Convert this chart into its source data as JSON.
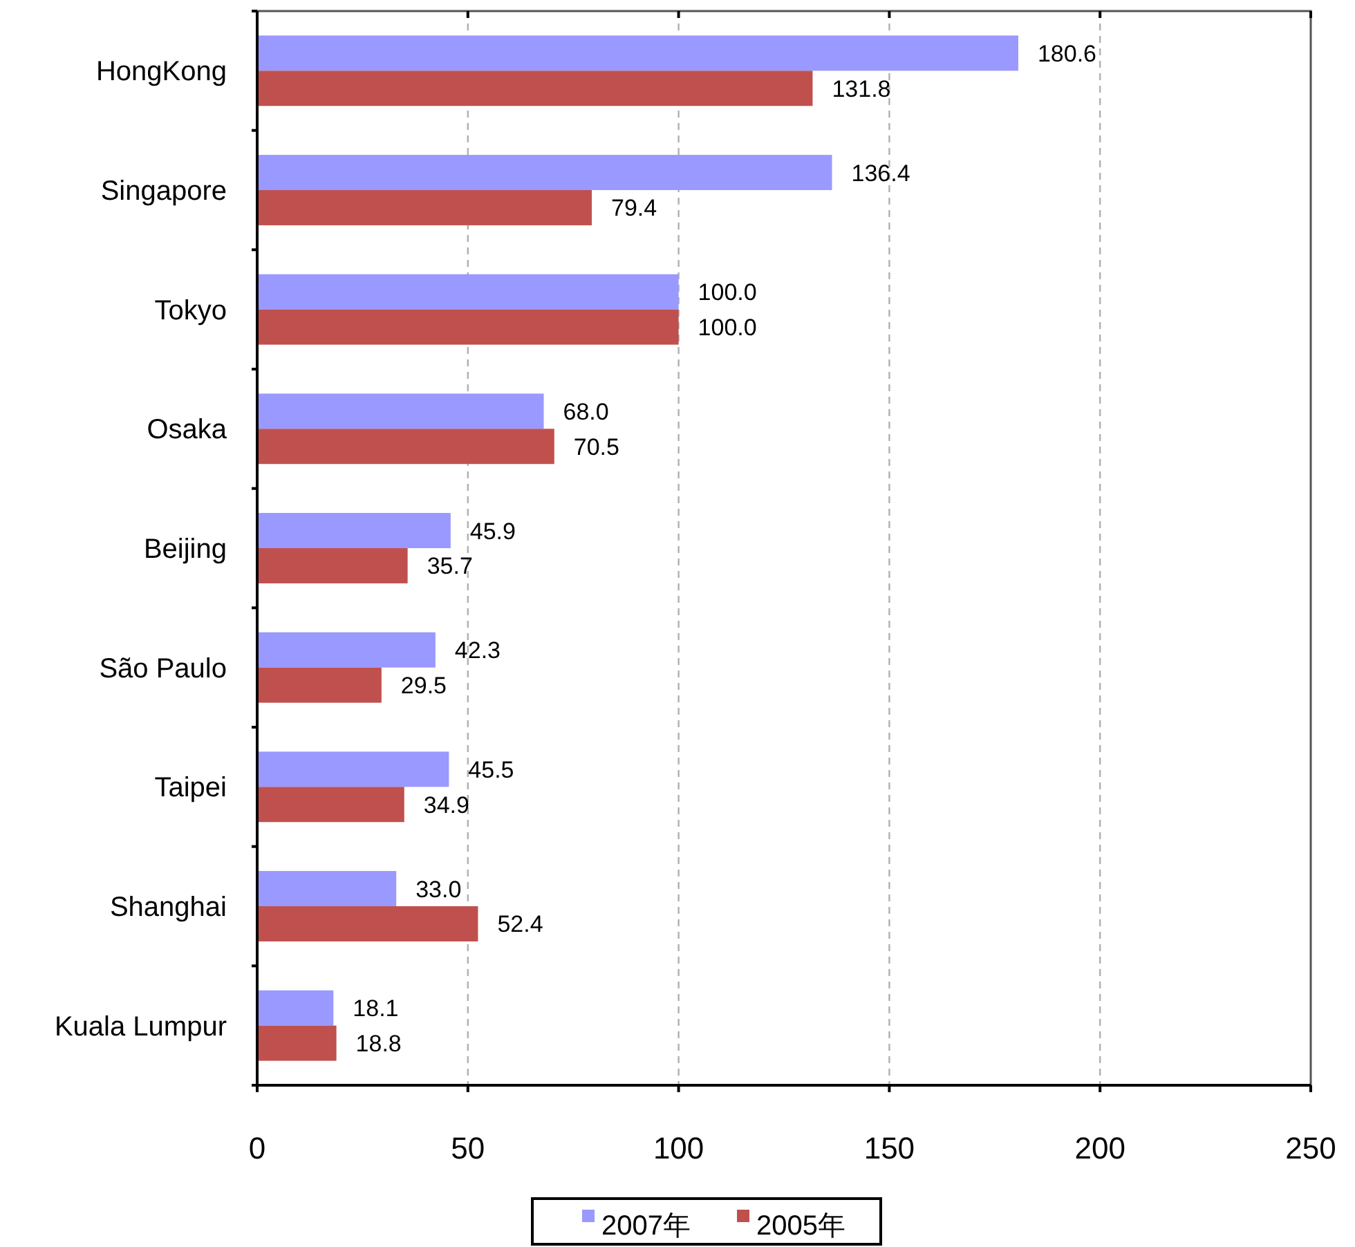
{
  "chart_data": {
    "type": "bar",
    "orientation": "horizontal",
    "categories": [
      "HongKong",
      "Singapore",
      "Tokyo",
      "Osaka",
      "Beijing",
      "São Paulo",
      "Taipei",
      "Shanghai",
      "Kuala Lumpur"
    ],
    "series": [
      {
        "name": "2007年",
        "color": "#9999ff",
        "values": [
          180.6,
          136.4,
          100.0,
          68.0,
          45.9,
          42.3,
          45.5,
          33.0,
          18.1
        ],
        "value_labels": [
          "180.6",
          "136.4",
          "100.0",
          "68.0",
          "45.9",
          "42.3",
          "45.5",
          "33.0",
          "18.1"
        ]
      },
      {
        "name": "2005年",
        "color": "#c0504d",
        "values": [
          131.8,
          79.4,
          100.0,
          70.5,
          35.7,
          29.5,
          34.9,
          52.4,
          18.8
        ],
        "value_labels": [
          "131.8",
          "79.4",
          "100.0",
          "70.5",
          "35.7",
          "29.5",
          "34.9",
          "52.4",
          "18.8"
        ]
      }
    ],
    "xlim": [
      0,
      250
    ],
    "xticks": [
      0,
      50,
      100,
      150,
      200,
      250
    ],
    "grid": "x",
    "legend": "bottom"
  }
}
